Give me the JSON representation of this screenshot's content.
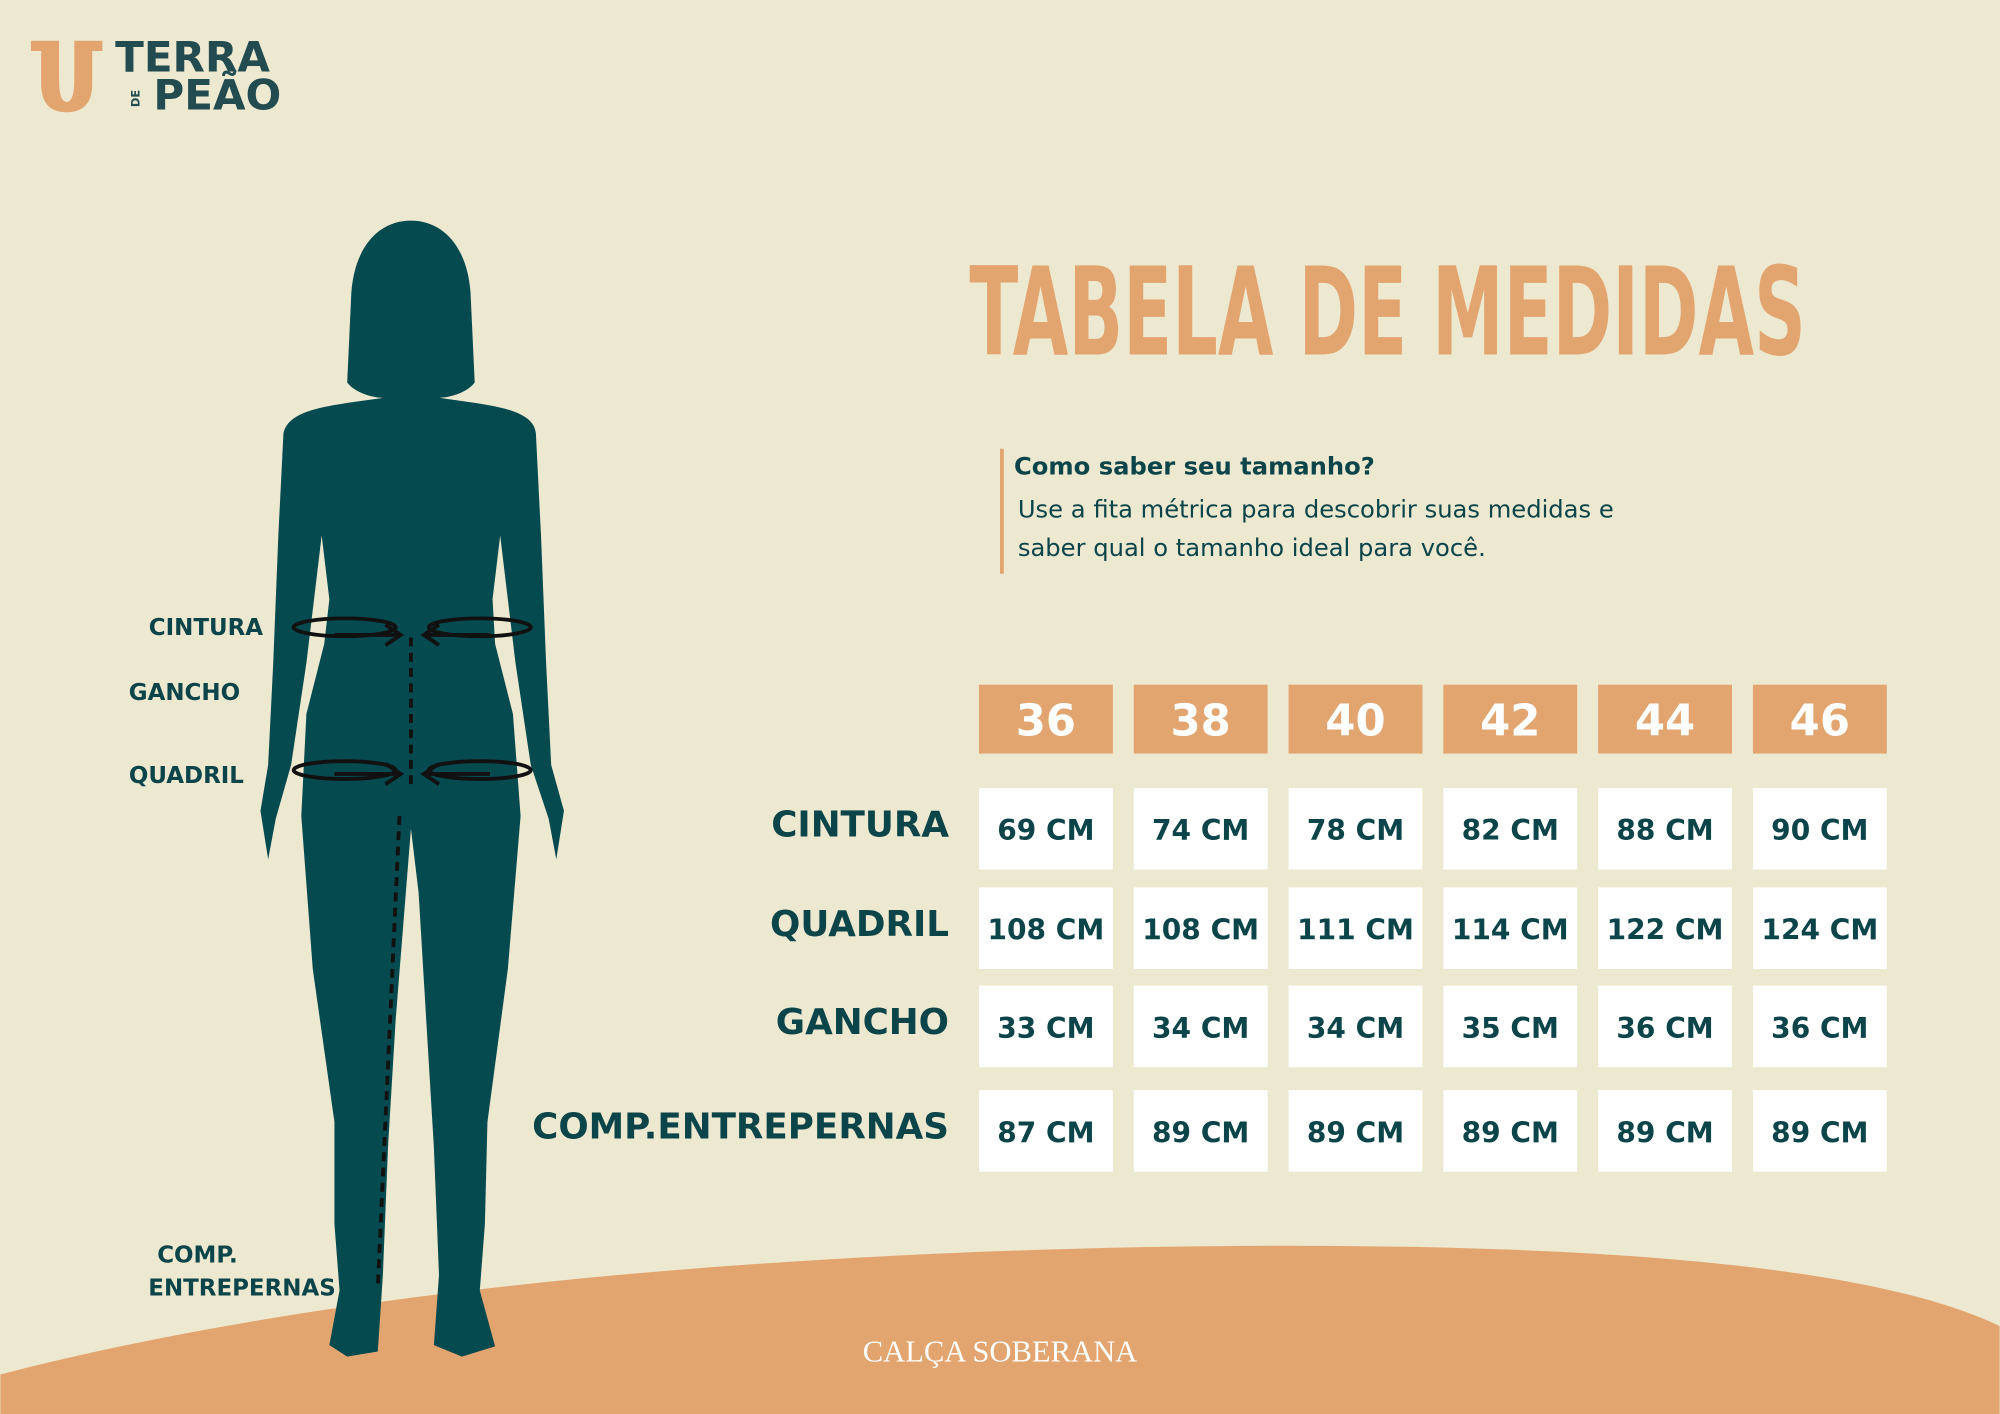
{
  "logo": {
    "top": "TERRA",
    "middle": "DE",
    "bottom": "PEÃO"
  },
  "title": "TABELA DE MEDIDAS",
  "tip": {
    "heading": "Como saber seu tamanho?",
    "lines": [
      "Use a fita métrica para descobrir suas medidas e",
      "saber qual o tamanho ideal para você."
    ]
  },
  "figure_labels": [
    {
      "lines": [
        "CINTURA"
      ]
    },
    {
      "lines": [
        "GANCHO"
      ]
    },
    {
      "lines": [
        "QUADRIL"
      ]
    },
    {
      "lines": [
        "COMP.",
        "ENTREPERNAS"
      ]
    }
  ],
  "table": {
    "sizes": [
      36,
      38,
      40,
      42,
      44,
      46
    ],
    "rows": [
      {
        "label": "CINTURA",
        "values": [
          "69 CM",
          "74 CM",
          "78 CM",
          "82 CM",
          "88 CM",
          "90 CM"
        ]
      },
      {
        "label": "QUADRIL",
        "values": [
          "108 CM",
          "108 CM",
          "111 CM",
          "114 CM",
          "122 CM",
          "124 CM"
        ]
      },
      {
        "label": "GANCHO",
        "values": [
          "33 CM",
          "34 CM",
          "34 CM",
          "35 CM",
          "36 CM",
          "36 CM"
        ]
      },
      {
        "label": "COMP.ENTREPERNAS",
        "values": [
          "87 CM",
          "89 CM",
          "89 CM",
          "89 CM",
          "89 CM",
          "89 CM"
        ]
      }
    ]
  },
  "footer": "CALÇA SOBERANA"
}
